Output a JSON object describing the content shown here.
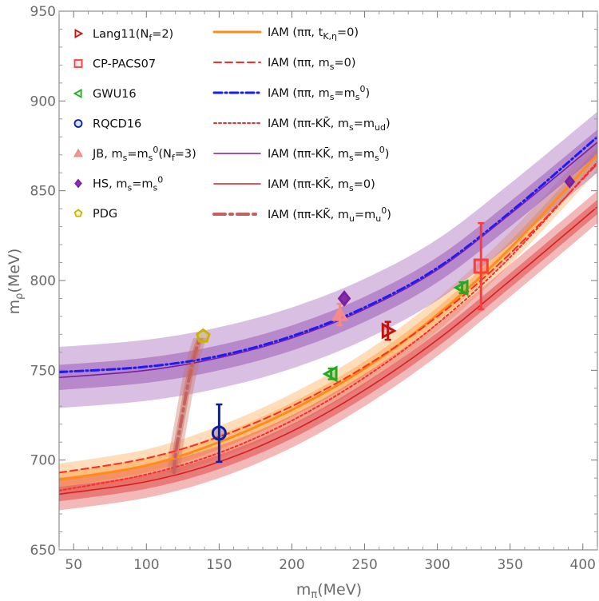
{
  "chart_data": {
    "type": "line",
    "xlabel": "m_π(MeV)",
    "ylabel": "m_ρ(MeV)",
    "xlim": [
      40,
      410
    ],
    "ylim": [
      650,
      950
    ],
    "grid": false,
    "x_ticks": [
      "50",
      "100",
      "150",
      "200",
      "250",
      "300",
      "350",
      "400"
    ],
    "y_ticks": [
      "650",
      "700",
      "750",
      "800",
      "850",
      "900",
      "950"
    ],
    "legend_markers": [
      {
        "label": "Lang11(N_f=2)",
        "marker": "triangle-right",
        "color": "#c0140f"
      },
      {
        "label": "CP-PACS07",
        "marker": "square",
        "color": "#ff3b3b"
      },
      {
        "label": "GWU16",
        "marker": "triangle-left",
        "color": "#22aa22"
      },
      {
        "label": "RQCD16",
        "marker": "circle",
        "color": "#0a1fa8"
      },
      {
        "label": "JB, m_s=m_s^0(N_f=3)",
        "marker": "triangle-up",
        "color": "#f48a8a"
      },
      {
        "label": "HS, m_s=m_s^0",
        "marker": "diamond",
        "color": "#7b1fa2"
      },
      {
        "label": "PDG",
        "marker": "pentagon",
        "color": "#c8b400"
      }
    ],
    "legend_lines": [
      {
        "label": "IAM (ππ, t_K,η=0)",
        "color": "#ff8c1a",
        "dash": "solid",
        "width": 3
      },
      {
        "label": "IAM (ππ, m_s=0)",
        "color": "#ff2a2a",
        "dash": "dashed",
        "width": 2
      },
      {
        "label": "IAM (ππ, m_s=m_s^0)",
        "color": "#1a1aff",
        "dash": "dashdot",
        "width": 3
      },
      {
        "label": "IAM (ππ-KK̄, m_s=m_ud)",
        "color": "#ff2a2a",
        "dash": "dotted",
        "width": 2
      },
      {
        "label": "IAM (ππ-KK̄, m_s=m_s^0)",
        "color": "#7b1fa2",
        "dash": "solid",
        "width": 1.6
      },
      {
        "label": "IAM (ππ-KK̄, m_s=0)",
        "color": "#d42020",
        "dash": "solid",
        "width": 1.6
      },
      {
        "label": "IAM (ππ-KK̄, m_u=m_u^0)",
        "color": "#c86060",
        "dash": "longdashdot",
        "width": 4
      }
    ],
    "series": [
      {
        "name": "IAM (ππ, t_K,η=0)",
        "x": [
          40,
          100,
          150,
          200,
          250,
          300,
          350,
          410
        ],
        "y": [
          689,
          697,
          710,
          728,
          751,
          781,
          818,
          870
        ],
        "band_inner": 4,
        "band_outer": 9,
        "band_color": "#ffa64d"
      },
      {
        "name": "IAM (ππ, m_s=0)",
        "x": [
          40,
          100,
          150,
          200,
          250,
          300,
          350,
          410
        ],
        "y": [
          693,
          701,
          713,
          730,
          752,
          780,
          815,
          865
        ]
      },
      {
        "name": "IAM (ππ, m_s=m_s^0)",
        "x": [
          40,
          100,
          150,
          200,
          250,
          300,
          350,
          410
        ],
        "y": [
          749,
          752,
          758,
          769,
          785,
          807,
          838,
          880
        ]
      },
      {
        "name": "IAM (ππ-KK̄, m_s=m_ud)",
        "x": [
          40,
          100,
          150,
          200,
          250,
          300,
          350,
          410
        ],
        "y": [
          683,
          692,
          704,
          722,
          746,
          776,
          813,
          866
        ]
      },
      {
        "name": "IAM (ππ-KK̄, m_s=m_s^0)",
        "x": [
          40,
          100,
          150,
          200,
          250,
          300,
          350,
          410
        ],
        "y": [
          746,
          750,
          757,
          768,
          784,
          806,
          837,
          877
        ],
        "band_inner": 7,
        "band_outer": 17,
        "band_color": "#9b59b6"
      },
      {
        "name": "IAM (ππ-KK̄, m_s=0)",
        "x": [
          40,
          100,
          150,
          200,
          250,
          300,
          350,
          410
        ],
        "y": [
          681,
          688,
          699,
          716,
          739,
          767,
          800,
          841
        ],
        "band_inner": 4,
        "band_outer": 9,
        "band_color": "#e04848"
      },
      {
        "name": "IAM (ππ-KK̄, m_u=m_u^0)",
        "x": [
          119,
          120,
          122,
          124,
          126,
          128,
          130,
          132,
          134,
          136,
          137
        ],
        "y": [
          693,
          703,
          713,
          722,
          731,
          740,
          748,
          755,
          761,
          766,
          768
        ],
        "band_inner": 5,
        "band_outer": 10,
        "band_color": "#c87060",
        "band_axis": "x"
      }
    ],
    "data_points": [
      {
        "set": "Lang11(N_f=2)",
        "x": 266,
        "y": 772,
        "yerr": 5
      },
      {
        "set": "CP-PACS07",
        "x": 330,
        "y": 808,
        "yerr": 24
      },
      {
        "set": "GWU16",
        "x": 227,
        "y": 748,
        "yerr": 3
      },
      {
        "set": "GWU16",
        "x": 317,
        "y": 796,
        "yerr": 3
      },
      {
        "set": "RQCD16",
        "x": 150,
        "y": 715,
        "yerr": 16
      },
      {
        "set": "JB, m_s=m_s^0(N_f=3)",
        "x": 233,
        "y": 781,
        "yerr": 6
      },
      {
        "set": "HS, m_s=m_s^0",
        "x": 236,
        "y": 790,
        "yerr": 0
      },
      {
        "set": "HS, m_s=m_s^0",
        "x": 391,
        "y": 855,
        "yerr": 0
      },
      {
        "set": "PDG",
        "x": 139,
        "y": 769,
        "yerr": 0
      }
    ]
  }
}
